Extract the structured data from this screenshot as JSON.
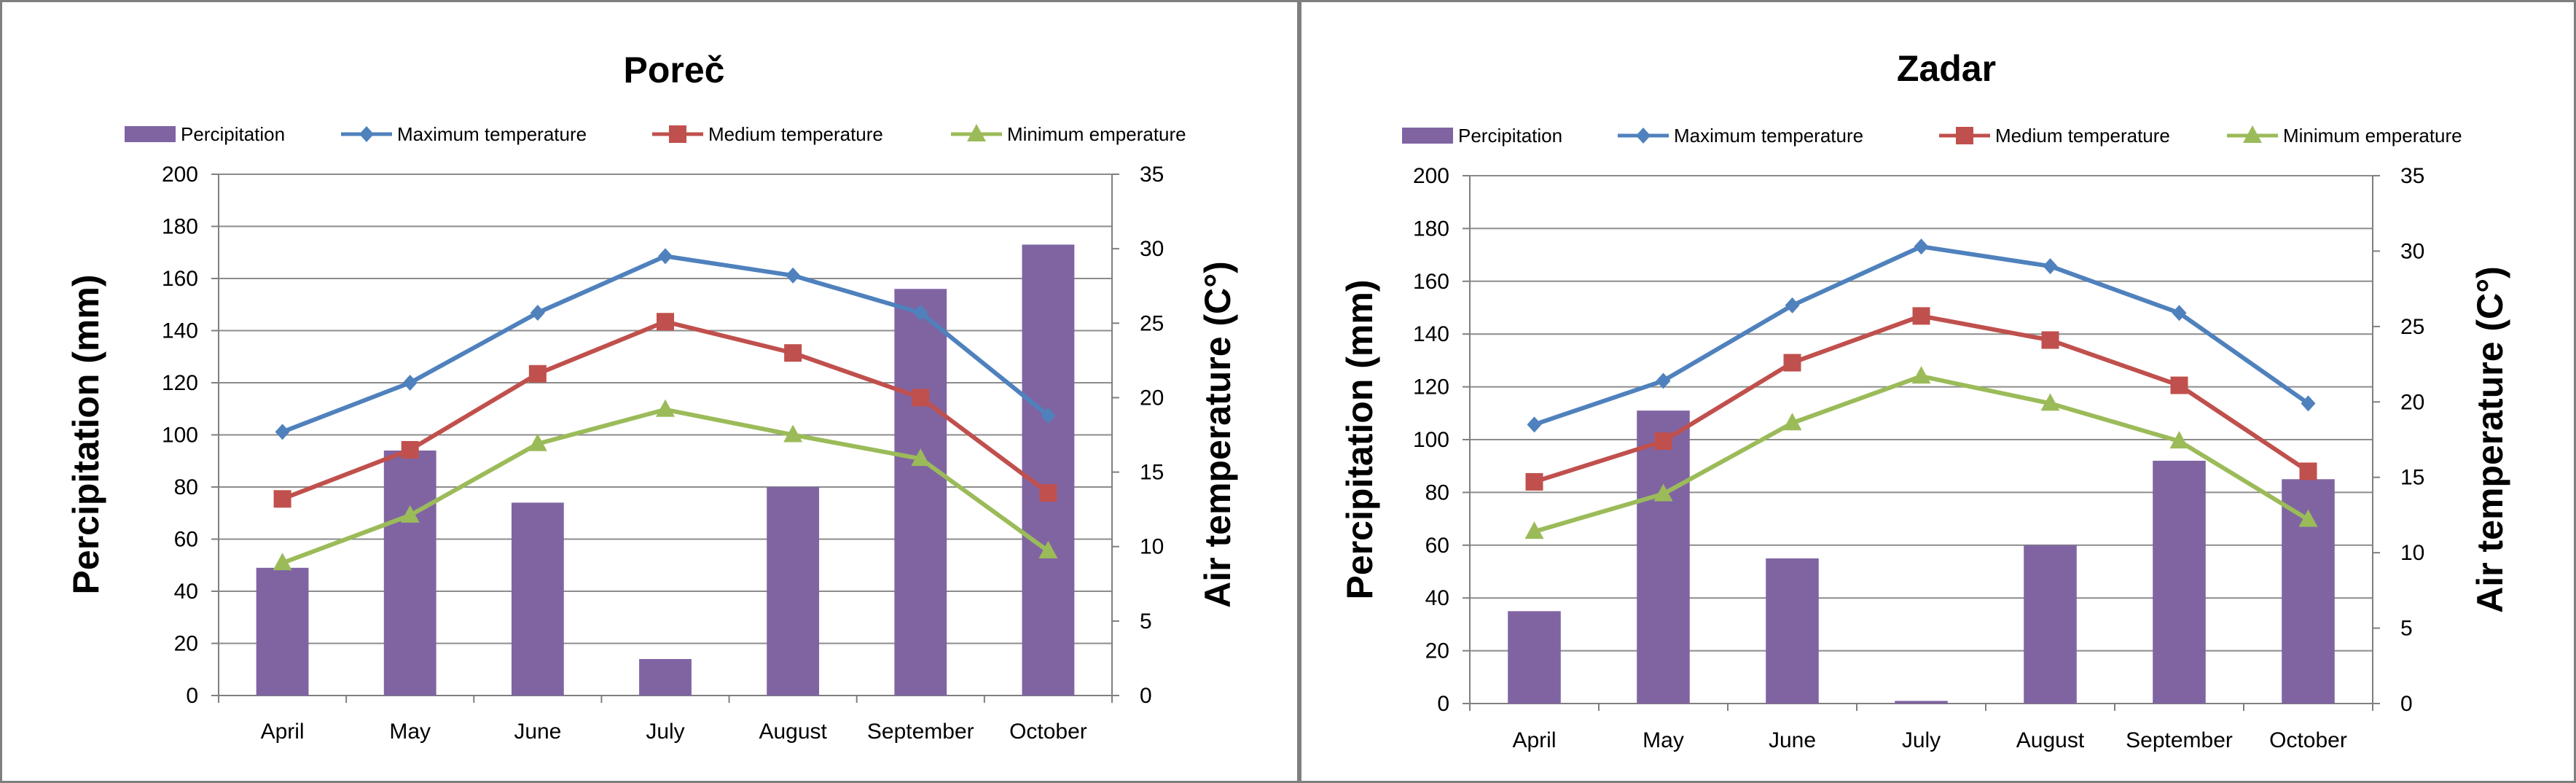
{
  "colors": {
    "precip": "#8064a2",
    "max": "#4f81bd",
    "medium": "#c0504d",
    "min": "#9bbb59",
    "grid": "#8c8c8c",
    "axis": "#7f7f7f"
  },
  "chart_data": [
    {
      "type": "bar+line",
      "title": "Poreč",
      "categories": [
        "April",
        "May",
        "June",
        "July",
        "August",
        "September",
        "October"
      ],
      "ylabel": "Percipitation (mm)",
      "y2label": "Air temperature (C°)",
      "ylim": [
        0,
        200
      ],
      "y2lim": [
        0,
        35
      ],
      "y_ticks": [
        "0",
        "20",
        "40",
        "60",
        "80",
        "100",
        "120",
        "140",
        "160",
        "180",
        "200"
      ],
      "y2_ticks": [
        "0",
        "5",
        "10",
        "15",
        "20",
        "25",
        "30",
        "35"
      ],
      "legend": [
        "Percipitation",
        "Maximum temperature",
        "Medium temperature",
        "Minimum emperature"
      ],
      "series": [
        {
          "name": "Percipitation",
          "kind": "bar",
          "axis": "left",
          "values": [
            49,
            94,
            74,
            14,
            80,
            156,
            173
          ]
        },
        {
          "name": "Maximum temperature",
          "kind": "line",
          "marker": "diamond",
          "axis": "right",
          "values": [
            17.7,
            21,
            25.7,
            29.5,
            28.2,
            25.7,
            18.8
          ]
        },
        {
          "name": "Medium temperature",
          "kind": "line",
          "marker": "square",
          "axis": "right",
          "values": [
            13.2,
            16.5,
            21.6,
            25.1,
            23,
            20,
            13.6
          ]
        },
        {
          "name": "Minimum emperature",
          "kind": "line",
          "marker": "triangle",
          "axis": "right",
          "values": [
            8.9,
            12.1,
            16.9,
            19.2,
            17.5,
            15.9,
            9.7
          ]
        }
      ]
    },
    {
      "type": "bar+line",
      "title": "Zadar",
      "categories": [
        "April",
        "May",
        "June",
        "July",
        "August",
        "September",
        "October"
      ],
      "ylabel": "Percipitation (mm)",
      "y2label": "Air temperature (C°)",
      "ylim": [
        0,
        200
      ],
      "y2lim": [
        0,
        35
      ],
      "y_ticks": [
        "0",
        "20",
        "40",
        "60",
        "80",
        "100",
        "120",
        "140",
        "160",
        "180",
        "200"
      ],
      "y2_ticks": [
        "0",
        "5",
        "10",
        "15",
        "20",
        "25",
        "30",
        "35"
      ],
      "legend": [
        "Percipitation",
        "Maximum temperature",
        "Medium temperature",
        "Minimum emperature"
      ],
      "series": [
        {
          "name": "Percipitation",
          "kind": "bar",
          "axis": "left",
          "values": [
            35,
            111,
            55,
            1,
            60,
            92,
            85
          ]
        },
        {
          "name": "Maximum temperature",
          "kind": "line",
          "marker": "diamond",
          "axis": "right",
          "values": [
            18.5,
            21.4,
            26.4,
            30.3,
            29,
            25.9,
            19.9
          ]
        },
        {
          "name": "Medium temperature",
          "kind": "line",
          "marker": "square",
          "axis": "right",
          "values": [
            14.7,
            17.4,
            22.6,
            25.7,
            24.1,
            21.1,
            15.4
          ]
        },
        {
          "name": "Minimum emperature",
          "kind": "line",
          "marker": "triangle",
          "axis": "right",
          "values": [
            11.4,
            13.9,
            18.6,
            21.7,
            19.9,
            17.4,
            12.2
          ]
        }
      ]
    }
  ]
}
